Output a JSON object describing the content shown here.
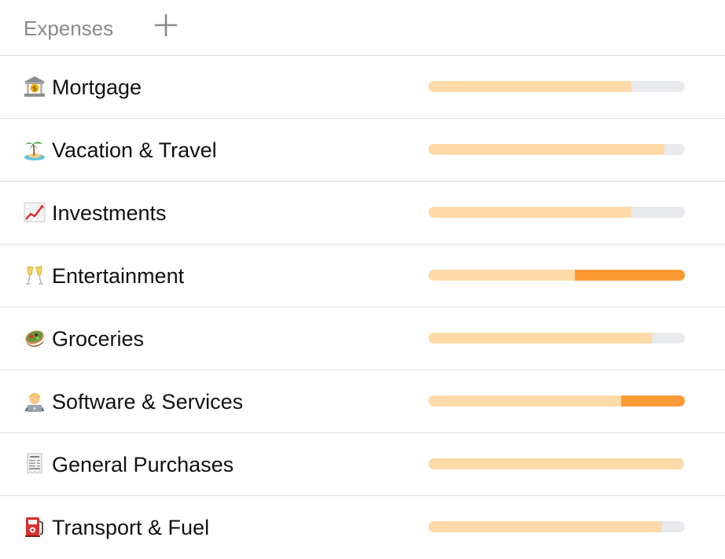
{
  "header": {
    "title": "Expenses",
    "add_icon": "plus-icon"
  },
  "colors": {
    "track": "#e8eaed",
    "spent": "#fddaa8",
    "over_budget": "#fb9a34",
    "divider": "#dcdcdc",
    "header_text": "#8a8a8a"
  },
  "categories": [
    {
      "key": "mortgage",
      "icon": "bank-icon",
      "label": "Mortgage",
      "spent_fraction": 0.79,
      "over_fraction": 0
    },
    {
      "key": "vacation-travel",
      "icon": "desert-island-icon",
      "label": "Vacation & Travel",
      "spent_fraction": 0.92,
      "over_fraction": 0
    },
    {
      "key": "investments",
      "icon": "chart-increasing-icon",
      "label": "Investments",
      "spent_fraction": 0.79,
      "over_fraction": 0
    },
    {
      "key": "entertainment",
      "icon": "champagne-glasses-icon",
      "label": "Entertainment",
      "spent_fraction": 0.57,
      "over_fraction": 0.43
    },
    {
      "key": "groceries",
      "icon": "salad-bowl-icon",
      "label": "Groceries",
      "spent_fraction": 0.87,
      "over_fraction": 0
    },
    {
      "key": "software-services",
      "icon": "technologist-icon",
      "label": "Software & Services",
      "spent_fraction": 0.75,
      "over_fraction": 0.25
    },
    {
      "key": "general-purchases",
      "icon": "receipt-icon",
      "label": "General Purchases",
      "spent_fraction": 0.99,
      "over_fraction": 0
    },
    {
      "key": "transport-fuel",
      "icon": "fuel-pump-icon",
      "label": "Transport & Fuel",
      "spent_fraction": 0.91,
      "over_fraction": 0
    }
  ]
}
